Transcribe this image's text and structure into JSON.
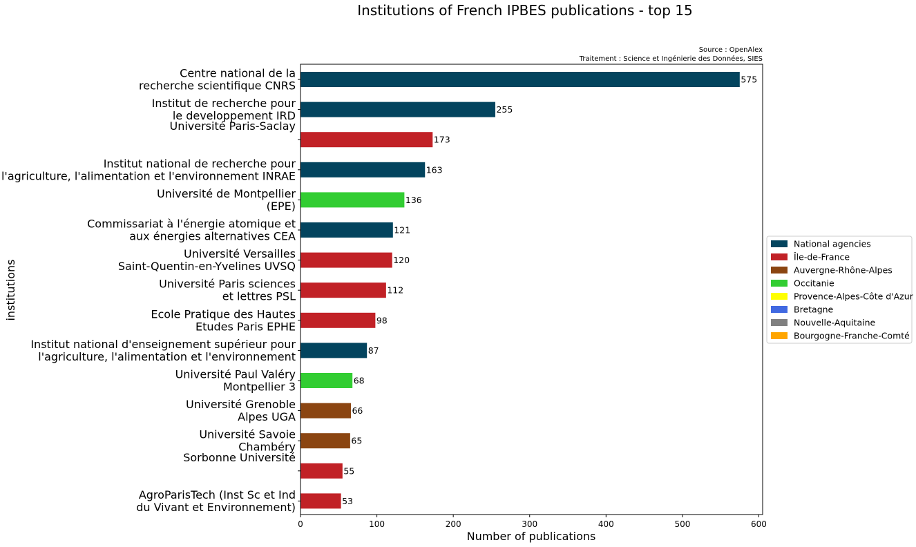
{
  "chart_data": {
    "type": "bar",
    "orientation": "horizontal",
    "title": "Institutions of French IPBES publications - top 15",
    "source_lines": [
      "Source : OpenAlex",
      "Traitement : Science et Ingénierie des Données, SIES"
    ],
    "xlabel": "Number of publications",
    "ylabel": "institutions",
    "xlim": [
      0,
      605
    ],
    "xticks": [
      0,
      100,
      200,
      300,
      400,
      500,
      600
    ],
    "grid": false,
    "legend_position": "right",
    "categories": [
      [
        "Centre national de la",
        "recherche scientifique CNRS"
      ],
      [
        "Institut de recherche pour",
        "le developpement IRD"
      ],
      [
        "Université Paris-Saclay"
      ],
      [
        "Institut national de recherche pour",
        "l'agriculture, l'alimentation et l'environnement INRAE"
      ],
      [
        "Université de Montpellier",
        "(EPE) "
      ],
      [
        "Commissariat à l'énergie atomique et",
        "aux énergies alternatives CEA"
      ],
      [
        "Université Versailles",
        "Saint-Quentin-en-Yvelines UVSQ"
      ],
      [
        "Université Paris sciences",
        "et lettres PSL"
      ],
      [
        "Ecole Pratique des Hautes",
        "Etudes Paris EPHE"
      ],
      [
        "Institut national d'enseignement supérieur pour",
        "l'agriculture, l'alimentation et l'environnement "
      ],
      [
        "Université Paul Valéry",
        "Montpellier 3 "
      ],
      [
        "Université Grenoble",
        "Alpes UGA"
      ],
      [
        "Université Savoie",
        "Chambéry "
      ],
      [
        "Sorbonne Université"
      ],
      [
        "AgroParisTech (Inst Sc et Ind",
        "du Vivant et Environnement) "
      ]
    ],
    "values": [
      575,
      255,
      173,
      163,
      136,
      121,
      120,
      112,
      98,
      87,
      68,
      66,
      65,
      55,
      53
    ],
    "groups": [
      "National agencies",
      "National agencies",
      "Île-de-France",
      "National agencies",
      "Occitanie",
      "National agencies",
      "Île-de-France",
      "Île-de-France",
      "Île-de-France",
      "National agencies",
      "Occitanie",
      "Auvergne-Rhône-Alpes",
      "Auvergne-Rhône-Alpes",
      "Île-de-France",
      "Île-de-France"
    ],
    "legend": [
      {
        "name": "National agencies",
        "color": "#03445e"
      },
      {
        "name": "Île-de-France",
        "color": "#c12126"
      },
      {
        "name": "Auvergne-Rhône-Alpes",
        "color": "#8b4511"
      },
      {
        "name": "Occitanie",
        "color": "#32cd32"
      },
      {
        "name": "Provence-Alpes-Côte d'Azur",
        "color": "#ffff00"
      },
      {
        "name": "Bretagne",
        "color": "#4169e1"
      },
      {
        "name": "Nouvelle-Aquitaine",
        "color": "#808080"
      },
      {
        "name": "Bourgogne-Franche-Comté",
        "color": "#ffa500"
      }
    ]
  }
}
